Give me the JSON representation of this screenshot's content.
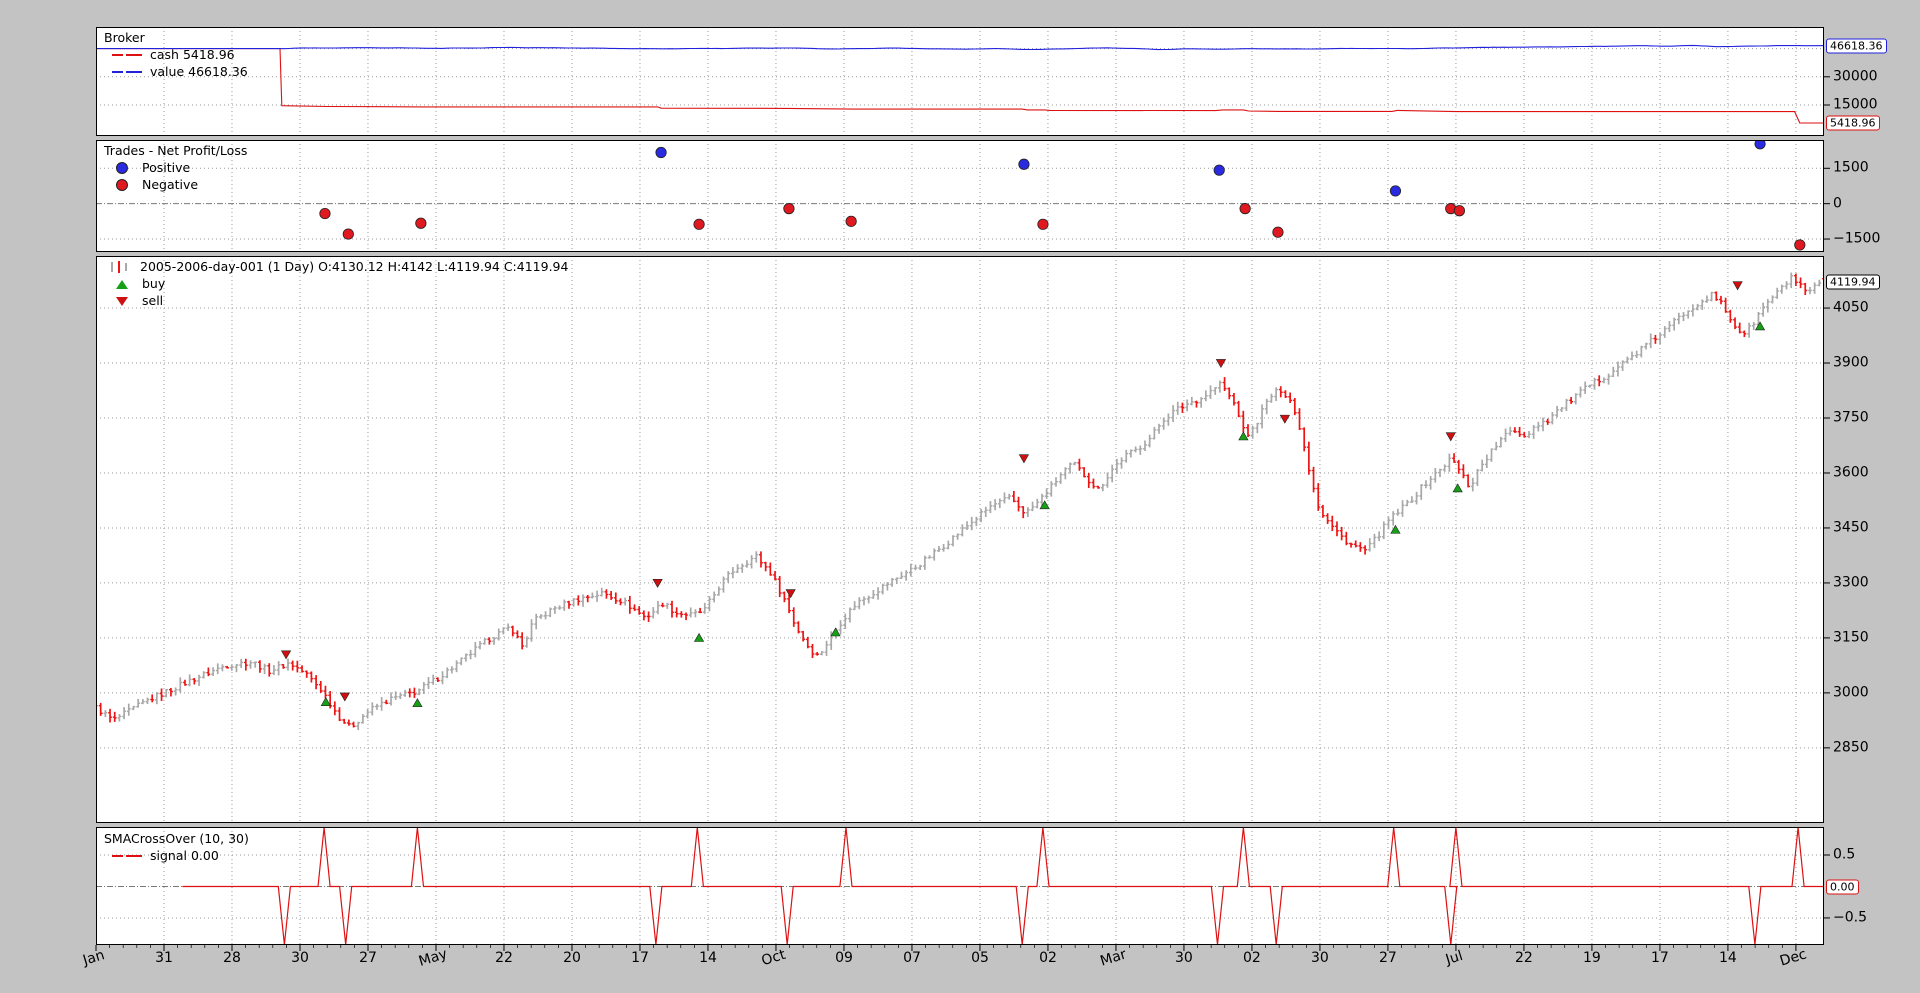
{
  "figure": {
    "background": "#c3c3c3",
    "plot_background": "#ffffff"
  },
  "xaxis": {
    "labels": [
      "Jan",
      "31",
      "28",
      "30",
      "27",
      "May",
      "22",
      "20",
      "17",
      "14",
      "Oct",
      "09",
      "07",
      "05",
      "02",
      "Mar",
      "30",
      "02",
      "30",
      "27",
      "Jul",
      "22",
      "19",
      "17",
      "14",
      "Dec"
    ],
    "month_indices": [
      0,
      5,
      10,
      15,
      20,
      25
    ]
  },
  "chart_data": [
    {
      "id": "broker",
      "type": "line",
      "title": "Broker",
      "legend": [
        {
          "label": "cash 5418.96",
          "color": "#dd1111",
          "marker": "line"
        },
        {
          "label": "value 46618.36",
          "color": "#2222dd",
          "marker": "line"
        }
      ],
      "ylim": [
        -1500,
        56500
      ],
      "yticks": [
        {
          "v": 30000,
          "label": "30000"
        },
        {
          "v": 15000,
          "label": "15000"
        }
      ],
      "grid_y": [
        45000,
        30000,
        15000
      ],
      "series": [
        {
          "name": "cash",
          "color": "#dd1111",
          "final": 5418.96,
          "anchors": [
            [
              0,
              45000
            ],
            [
              0.1065,
              45000
            ],
            [
              0.1075,
              14600
            ],
            [
              0.134,
              14200
            ],
            [
              0.19,
              14000
            ],
            [
              0.325,
              14000
            ],
            [
              0.327,
              13300
            ],
            [
              0.4,
              13200
            ],
            [
              0.438,
              12800
            ],
            [
              0.536,
              12800
            ],
            [
              0.539,
              12400
            ],
            [
              0.549,
              12400
            ],
            [
              0.552,
              12100
            ],
            [
              0.648,
              12000
            ],
            [
              0.652,
              12400
            ],
            [
              0.664,
              12400
            ],
            [
              0.667,
              11800
            ],
            [
              0.684,
              11600
            ],
            [
              0.75,
              11600
            ],
            [
              0.753,
              12100
            ],
            [
              0.787,
              11500
            ],
            [
              0.983,
              11500
            ],
            [
              0.986,
              5419
            ],
            [
              1,
              5419
            ]
          ],
          "noise": 0
        },
        {
          "name": "value",
          "color": "#2222dd",
          "final": 46618.36,
          "anchors": [
            [
              0,
              45000
            ],
            [
              0.107,
              45000
            ],
            [
              0.12,
              45300
            ],
            [
              0.16,
              45500
            ],
            [
              0.2,
              45150
            ],
            [
              0.24,
              45600
            ],
            [
              0.28,
              45300
            ],
            [
              0.32,
              44900
            ],
            [
              0.36,
              45100
            ],
            [
              0.4,
              45350
            ],
            [
              0.43,
              44800
            ],
            [
              0.46,
              45300
            ],
            [
              0.5,
              44700
            ],
            [
              0.52,
              45000
            ],
            [
              0.545,
              44500
            ],
            [
              0.56,
              44900
            ],
            [
              0.585,
              45400
            ],
            [
              0.6,
              45100
            ],
            [
              0.615,
              44450
            ],
            [
              0.63,
              44900
            ],
            [
              0.65,
              44700
            ],
            [
              0.67,
              44950
            ],
            [
              0.7,
              44800
            ],
            [
              0.73,
              45100
            ],
            [
              0.76,
              45000
            ],
            [
              0.8,
              45600
            ],
            [
              0.84,
              45900
            ],
            [
              0.87,
              46200
            ],
            [
              0.895,
              46550
            ],
            [
              0.91,
              46300
            ],
            [
              0.925,
              46650
            ],
            [
              0.94,
              46000
            ],
            [
              0.955,
              46300
            ],
            [
              0.97,
              46550
            ],
            [
              1,
              46618.36
            ]
          ],
          "noise": 110
        }
      ],
      "tags": [
        {
          "text": "46618.36",
          "value": 46618.36,
          "color": "#2222dd"
        },
        {
          "text": "5418.96",
          "value": 5418.96,
          "color": "#dd1111"
        }
      ]
    },
    {
      "id": "trades",
      "type": "scatter",
      "title": "Trades - Net Profit/Loss",
      "legend": [
        {
          "label": "Positive",
          "color": "#2a2ae0",
          "marker": "dot"
        },
        {
          "label": "Negative",
          "color": "#e01820",
          "marker": "dot"
        }
      ],
      "ylim": [
        -2050,
        2700
      ],
      "yticks": [
        {
          "v": 1500,
          "label": "1500"
        },
        {
          "v": 0,
          "label": "0"
        },
        {
          "v": -1500,
          "label": "−1500"
        }
      ],
      "grid_y": [
        1500,
        0,
        -1500
      ],
      "points": [
        {
          "x": 0.1325,
          "pnl": -420
        },
        {
          "x": 0.146,
          "pnl": -1290
        },
        {
          "x": 0.188,
          "pnl": -830
        },
        {
          "x": 0.327,
          "pnl": 2170
        },
        {
          "x": 0.349,
          "pnl": -875
        },
        {
          "x": 0.401,
          "pnl": -210
        },
        {
          "x": 0.437,
          "pnl": -750
        },
        {
          "x": 0.537,
          "pnl": 1670
        },
        {
          "x": 0.548,
          "pnl": -875
        },
        {
          "x": 0.65,
          "pnl": 1420
        },
        {
          "x": 0.665,
          "pnl": -210
        },
        {
          "x": 0.684,
          "pnl": -1210
        },
        {
          "x": 0.752,
          "pnl": 540
        },
        {
          "x": 0.784,
          "pnl": -210
        },
        {
          "x": 0.789,
          "pnl": -300
        },
        {
          "x": 0.963,
          "pnl": 2540
        },
        {
          "x": 0.986,
          "pnl": -1750
        }
      ]
    },
    {
      "id": "price",
      "type": "ohlc",
      "title": "2005-2006-day-001 (1 Day) O:4130.12 H:4142 L:4119.94 C:4119.94",
      "legend": [
        {
          "label": "buy",
          "color": "#16a016",
          "marker": "triangle-up"
        },
        {
          "label": "sell",
          "color": "#d01010",
          "marker": "triangle-down"
        }
      ],
      "ylim": [
        2645,
        4192
      ],
      "yticks": [
        {
          "v": 4050,
          "label": "4050"
        },
        {
          "v": 3900,
          "label": "3900"
        },
        {
          "v": 3750,
          "label": "3750"
        },
        {
          "v": 3600,
          "label": "3600"
        },
        {
          "v": 3450,
          "label": "3450"
        },
        {
          "v": 3300,
          "label": "3300"
        },
        {
          "v": 3150,
          "label": "3150"
        },
        {
          "v": 3000,
          "label": "3000"
        },
        {
          "v": 2850,
          "label": "2850"
        }
      ],
      "grid_y": [
        4050,
        3900,
        3750,
        3600,
        3450,
        3300,
        3150,
        3000,
        2850
      ],
      "up_color": "#a8a8a8",
      "down_color": "#ee1414",
      "bar_count": 370,
      "last_bar": {
        "open": 4130.12,
        "high": 4142,
        "low": 4119.94,
        "close": 4119.94
      },
      "close_anchors": [
        [
          0.0,
          2960
        ],
        [
          0.01,
          2925
        ],
        [
          0.03,
          2980
        ],
        [
          0.055,
          3035
        ],
        [
          0.075,
          3075
        ],
        [
          0.09,
          3085
        ],
        [
          0.1,
          3060
        ],
        [
          0.112,
          3082
        ],
        [
          0.122,
          3050
        ],
        [
          0.131,
          3005
        ],
        [
          0.14,
          2938
        ],
        [
          0.147,
          2905
        ],
        [
          0.158,
          2952
        ],
        [
          0.17,
          2982
        ],
        [
          0.186,
          3005
        ],
        [
          0.2,
          3048
        ],
        [
          0.212,
          3090
        ],
        [
          0.228,
          3150
        ],
        [
          0.24,
          3180
        ],
        [
          0.247,
          3125
        ],
        [
          0.253,
          3195
        ],
        [
          0.265,
          3230
        ],
        [
          0.278,
          3255
        ],
        [
          0.293,
          3272
        ],
        [
          0.305,
          3250
        ],
        [
          0.318,
          3205
        ],
        [
          0.328,
          3245
        ],
        [
          0.336,
          3218
        ],
        [
          0.345,
          3212
        ],
        [
          0.352,
          3225
        ],
        [
          0.362,
          3300
        ],
        [
          0.37,
          3340
        ],
        [
          0.382,
          3373
        ],
        [
          0.39,
          3330
        ],
        [
          0.398,
          3260
        ],
        [
          0.405,
          3180
        ],
        [
          0.413,
          3120
        ],
        [
          0.418,
          3100
        ],
        [
          0.425,
          3150
        ],
        [
          0.432,
          3200
        ],
        [
          0.44,
          3245
        ],
        [
          0.452,
          3280
        ],
        [
          0.462,
          3310
        ],
        [
          0.475,
          3345
        ],
        [
          0.49,
          3400
        ],
        [
          0.505,
          3460
        ],
        [
          0.518,
          3510
        ],
        [
          0.529,
          3532
        ],
        [
          0.538,
          3490
        ],
        [
          0.545,
          3520
        ],
        [
          0.552,
          3558
        ],
        [
          0.56,
          3605
        ],
        [
          0.566,
          3625
        ],
        [
          0.573,
          3588
        ],
        [
          0.58,
          3555
        ],
        [
          0.588,
          3610
        ],
        [
          0.595,
          3645
        ],
        [
          0.602,
          3663
        ],
        [
          0.61,
          3695
        ],
        [
          0.618,
          3748
        ],
        [
          0.625,
          3772
        ],
        [
          0.632,
          3790
        ],
        [
          0.64,
          3805
        ],
        [
          0.647,
          3830
        ],
        [
          0.651,
          3845
        ],
        [
          0.655,
          3815
        ],
        [
          0.66,
          3780
        ],
        [
          0.665,
          3700
        ],
        [
          0.67,
          3720
        ],
        [
          0.676,
          3782
        ],
        [
          0.681,
          3815
        ],
        [
          0.686,
          3828
        ],
        [
          0.691,
          3800
        ],
        [
          0.697,
          3720
        ],
        [
          0.702,
          3610
        ],
        [
          0.708,
          3500
        ],
        [
          0.715,
          3455
        ],
        [
          0.722,
          3420
        ],
        [
          0.728,
          3400
        ],
        [
          0.735,
          3388
        ],
        [
          0.742,
          3430
        ],
        [
          0.748,
          3470
        ],
        [
          0.755,
          3500
        ],
        [
          0.762,
          3532
        ],
        [
          0.77,
          3575
        ],
        [
          0.778,
          3610
        ],
        [
          0.784,
          3640
        ],
        [
          0.79,
          3600
        ],
        [
          0.795,
          3560
        ],
        [
          0.8,
          3610
        ],
        [
          0.806,
          3650
        ],
        [
          0.813,
          3690
        ],
        [
          0.82,
          3720
        ],
        [
          0.827,
          3700
        ],
        [
          0.833,
          3730
        ],
        [
          0.84,
          3745
        ],
        [
          0.848,
          3780
        ],
        [
          0.855,
          3805
        ],
        [
          0.862,
          3830
        ],
        [
          0.87,
          3855
        ],
        [
          0.878,
          3880
        ],
        [
          0.885,
          3905
        ],
        [
          0.892,
          3930
        ],
        [
          0.9,
          3960
        ],
        [
          0.908,
          3990
        ],
        [
          0.915,
          4020
        ],
        [
          0.922,
          4048
        ],
        [
          0.929,
          4070
        ],
        [
          0.935,
          4085
        ],
        [
          0.941,
          4060
        ],
        [
          0.947,
          4010
        ],
        [
          0.953,
          3978
        ],
        [
          0.958,
          4000
        ],
        [
          0.963,
          4040
        ],
        [
          0.969,
          4075
        ],
        [
          0.975,
          4100
        ],
        [
          0.981,
          4135
        ],
        [
          0.986,
          4110
        ],
        [
          0.991,
          4085
        ],
        [
          0.996,
          4115
        ],
        [
          1.0,
          4119.94
        ]
      ],
      "markers": [
        {
          "x": 0.11,
          "y": 3105,
          "type": "sell"
        },
        {
          "x": 0.133,
          "y": 2975,
          "type": "buy"
        },
        {
          "x": 0.144,
          "y": 2990,
          "type": "sell"
        },
        {
          "x": 0.186,
          "y": 2972,
          "type": "buy"
        },
        {
          "x": 0.325,
          "y": 3300,
          "type": "sell"
        },
        {
          "x": 0.349,
          "y": 3150,
          "type": "buy"
        },
        {
          "x": 0.402,
          "y": 3272,
          "type": "sell"
        },
        {
          "x": 0.428,
          "y": 3165,
          "type": "buy"
        },
        {
          "x": 0.537,
          "y": 3640,
          "type": "sell"
        },
        {
          "x": 0.549,
          "y": 3512,
          "type": "buy"
        },
        {
          "x": 0.651,
          "y": 3900,
          "type": "sell"
        },
        {
          "x": 0.664,
          "y": 3700,
          "type": "buy"
        },
        {
          "x": 0.688,
          "y": 3748,
          "type": "sell"
        },
        {
          "x": 0.752,
          "y": 3445,
          "type": "buy"
        },
        {
          "x": 0.784,
          "y": 3700,
          "type": "sell"
        },
        {
          "x": 0.788,
          "y": 3558,
          "type": "buy"
        },
        {
          "x": 0.95,
          "y": 4112,
          "type": "sell"
        },
        {
          "x": 0.963,
          "y": 4000,
          "type": "buy"
        }
      ],
      "tag": {
        "text": "4119.94",
        "value": 4119.94,
        "color": "#000000"
      }
    },
    {
      "id": "signal",
      "type": "line",
      "title": "SMACrossOver (10, 30)",
      "legend": [
        {
          "label": "signal 0.00",
          "color": "#dd1111",
          "marker": "line"
        }
      ],
      "ylim": [
        -0.93,
        0.945
      ],
      "yticks": [
        {
          "v": 0.5,
          "label": "0.5"
        },
        {
          "v": -0.5,
          "label": "−0.5"
        }
      ],
      "grid_y": [
        0.5,
        0,
        -0.5
      ],
      "line_color": "#dd1111",
      "line_start": 0.05,
      "baseline": 0,
      "spikes": [
        {
          "x": 0.109,
          "dir": -1
        },
        {
          "x": 0.132,
          "dir": 1
        },
        {
          "x": 0.1445,
          "dir": -1
        },
        {
          "x": 0.186,
          "dir": 1
        },
        {
          "x": 0.324,
          "dir": -1
        },
        {
          "x": 0.348,
          "dir": 1
        },
        {
          "x": 0.4,
          "dir": -1
        },
        {
          "x": 0.434,
          "dir": 1
        },
        {
          "x": 0.536,
          "dir": -1
        },
        {
          "x": 0.548,
          "dir": 1
        },
        {
          "x": 0.649,
          "dir": -1
        },
        {
          "x": 0.664,
          "dir": 1
        },
        {
          "x": 0.683,
          "dir": -1
        },
        {
          "x": 0.751,
          "dir": 1
        },
        {
          "x": 0.784,
          "dir": -1
        },
        {
          "x": 0.787,
          "dir": 1
        },
        {
          "x": 0.96,
          "dir": -1
        },
        {
          "x": 0.985,
          "dir": 1
        }
      ],
      "tag": {
        "text": "0.00",
        "value": 0,
        "color": "#dd1111"
      }
    }
  ]
}
